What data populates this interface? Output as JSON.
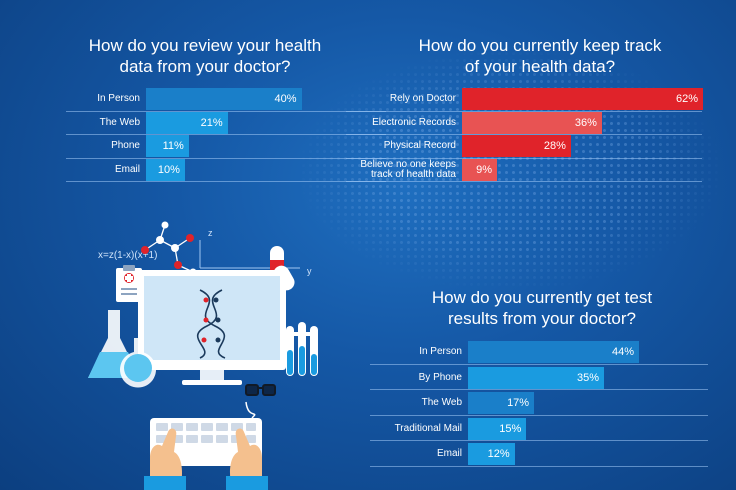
{
  "chart_data": [
    {
      "type": "bar",
      "orientation": "horizontal",
      "title": "How do you review your health\ndata from your doctor?",
      "categories": [
        "In Person",
        "The Web",
        "Phone",
        "Email"
      ],
      "values": [
        40,
        21,
        11,
        10
      ],
      "value_labels": [
        "40%",
        "21%",
        "11%",
        "10%"
      ],
      "xlim": [
        0,
        100
      ],
      "bar_colors": [
        "#1a7fc9",
        "#1a9be0",
        "#1a9be0",
        "#1a9be0"
      ]
    },
    {
      "type": "bar",
      "orientation": "horizontal",
      "title": "How do you currently keep track\nof your health data?",
      "categories": [
        "Rely on Doctor",
        "Electronic Records",
        "Physical Record",
        "Believe no one keeps\ntrack of health data"
      ],
      "values": [
        62,
        36,
        28,
        9
      ],
      "value_labels": [
        "62%",
        "36%",
        "28%",
        "9%"
      ],
      "xlim": [
        0,
        100
      ],
      "bar_colors": [
        "#e0232a",
        "#e85353",
        "#e0232a",
        "#e85353"
      ]
    },
    {
      "type": "bar",
      "orientation": "horizontal",
      "title": "How do you currently get test\nresults from your doctor?",
      "categories": [
        "In Person",
        "By Phone",
        "The Web",
        "Traditional Mail",
        "Email"
      ],
      "values": [
        44,
        35,
        17,
        15,
        12
      ],
      "value_labels": [
        "44%",
        "35%",
        "17%",
        "15%",
        "12%"
      ],
      "xlim": [
        0,
        100
      ],
      "bar_colors": [
        "#1a7fc9",
        "#1a9be0",
        "#1a7fc9",
        "#1a9be0",
        "#1a9be0"
      ]
    }
  ],
  "illustration": {
    "formula": "x=z(1-x)(x+1)",
    "axis_z": "z",
    "axis_y": "y"
  }
}
